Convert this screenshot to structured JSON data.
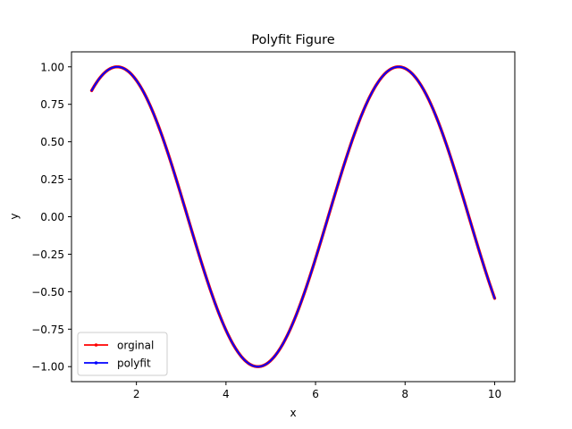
{
  "chart_data": {
    "type": "line",
    "title": "Polyfit Figure",
    "xlabel": "x",
    "ylabel": "y",
    "xlim": [
      0.55,
      10.45
    ],
    "ylim": [
      -1.1,
      1.1
    ],
    "x_ticks": [
      2,
      4,
      6,
      8,
      10
    ],
    "y_ticks": [
      -1.0,
      -0.75,
      -0.5,
      -0.25,
      0.0,
      0.25,
      0.5,
      0.75,
      1.0
    ],
    "x_tick_labels": [
      "2",
      "4",
      "6",
      "8",
      "10"
    ],
    "y_tick_labels": [
      "−1.00",
      "−0.75",
      "−0.50",
      "−0.25",
      "0.00",
      "0.25",
      "0.50",
      "0.75",
      "1.00"
    ],
    "grid": false,
    "legend_position": "lower-left",
    "x_range": [
      1,
      10
    ],
    "series": [
      {
        "name": "orginal",
        "color": "#ff0000",
        "marker": "dot",
        "function": "sin(x)",
        "x": [
          1.0,
          1.5,
          2.0,
          2.5,
          3.0,
          3.5,
          4.0,
          4.5,
          5.0,
          5.5,
          6.0,
          6.5,
          7.0,
          7.5,
          8.0,
          8.5,
          9.0,
          9.5,
          10.0
        ],
        "y": [
          0.841,
          0.997,
          0.909,
          0.598,
          0.141,
          -0.351,
          -0.757,
          -0.978,
          -0.959,
          -0.706,
          -0.279,
          0.215,
          0.657,
          0.938,
          0.989,
          0.798,
          0.412,
          -0.075,
          -0.544
        ]
      },
      {
        "name": "polyfit",
        "color": "#0000ff",
        "marker": "dot",
        "function": "polynomial fit of sin(x)",
        "x": [
          1.0,
          1.5,
          2.0,
          2.5,
          3.0,
          3.5,
          4.0,
          4.5,
          5.0,
          5.5,
          6.0,
          6.5,
          7.0,
          7.5,
          8.0,
          8.5,
          9.0,
          9.5,
          10.0
        ],
        "y": [
          0.841,
          0.997,
          0.909,
          0.598,
          0.141,
          -0.351,
          -0.757,
          -0.978,
          -0.959,
          -0.706,
          -0.279,
          0.215,
          0.657,
          0.938,
          0.989,
          0.798,
          0.412,
          -0.075,
          -0.544
        ]
      }
    ]
  }
}
